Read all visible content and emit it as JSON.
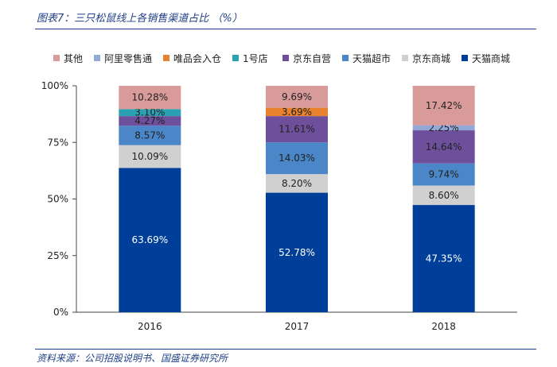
{
  "header": {
    "title": "图表7：三只松鼠线上各销售渠道占比 （%）"
  },
  "footer": {
    "source": "资料来源：公司招股说明书、国盛证券研究所"
  },
  "chart_data": {
    "type": "bar",
    "stacked": true,
    "title": "",
    "xlabel": "",
    "ylabel": "",
    "ylim": [
      0,
      100
    ],
    "y_ticks": [
      "0%",
      "25%",
      "50%",
      "75%",
      "100%"
    ],
    "categories": [
      "2016",
      "2017",
      "2018"
    ],
    "legend_position": "top",
    "series": [
      {
        "name": "天猫商城",
        "color": "#003f99",
        "label_color": "#ffffff",
        "values": [
          63.69,
          52.78,
          47.35
        ],
        "labels": [
          "63.69%",
          "52.78%",
          "47.35%"
        ]
      },
      {
        "name": "京东商城",
        "color": "#d0d0d0",
        "label_color": "#222222",
        "values": [
          10.09,
          8.2,
          8.6
        ],
        "labels": [
          "10.09%",
          "8.20%",
          "8.60%"
        ]
      },
      {
        "name": "天猫超市",
        "color": "#4a86c8",
        "label_color": "#222222",
        "values": [
          8.57,
          14.03,
          9.74
        ],
        "labels": [
          "8.57%",
          "14.03%",
          "9.74%"
        ]
      },
      {
        "name": "京东自营",
        "color": "#6e4f9c",
        "label_color": "#222222",
        "values": [
          4.27,
          11.61,
          14.64
        ],
        "labels": [
          "4.27%",
          "11.61%",
          "14.64%"
        ]
      },
      {
        "name": "1号店",
        "color": "#2aa0b3",
        "label_color": "#222222",
        "values": [
          3.1,
          0,
          0
        ],
        "labels": [
          "3.10%",
          "",
          ""
        ]
      },
      {
        "name": "唯品会入仓",
        "color": "#e8822e",
        "label_color": "#222222",
        "values": [
          0,
          3.69,
          0
        ],
        "labels": [
          "",
          "3.69%",
          ""
        ]
      },
      {
        "name": "阿里零售通",
        "color": "#94a8d8",
        "label_color": "#222222",
        "values": [
          0,
          0,
          2.25
        ],
        "labels": [
          "",
          "",
          "2.25%"
        ]
      },
      {
        "name": "其他",
        "color": "#d99a9a",
        "label_color": "#222222",
        "values": [
          10.28,
          9.69,
          17.42
        ],
        "labels": [
          "10.28%",
          "9.69%",
          "17.42%"
        ]
      }
    ],
    "legend_order": [
      "其他",
      "阿里零售通",
      "唯品会入仓",
      "1号店",
      "京东自营",
      "天猫超市",
      "京东商城",
      "天猫商城"
    ]
  }
}
